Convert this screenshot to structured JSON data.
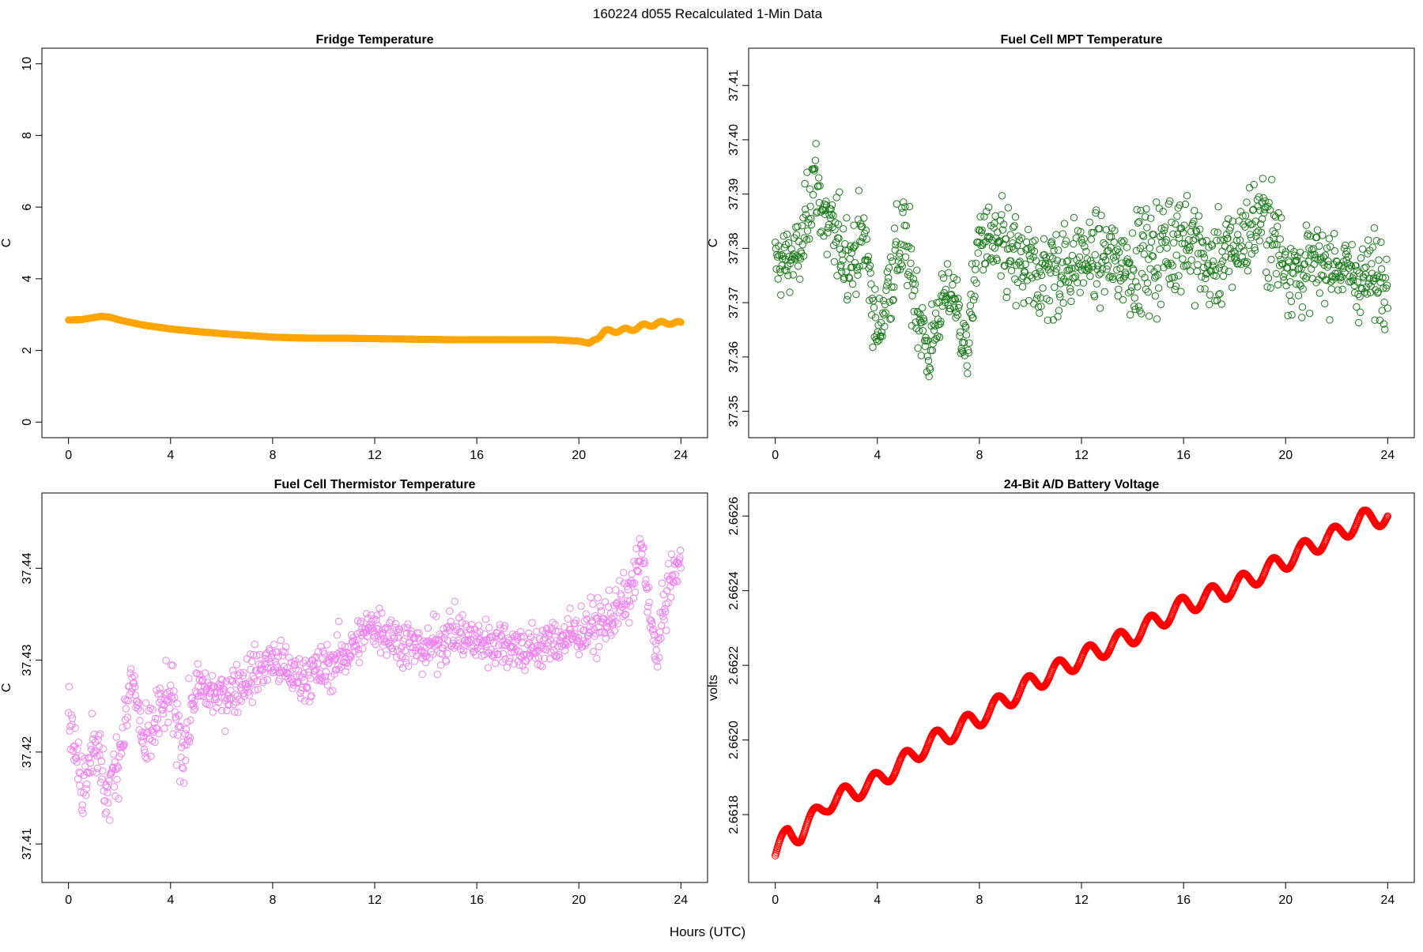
{
  "figure": {
    "title": "160224   d055   Recalculated 1-Min Data",
    "xlabel": "Hours (UTC)"
  },
  "chart_data": [
    {
      "id": "fridge",
      "type": "scatter",
      "title": "Fridge Temperature",
      "xlabel": "",
      "ylabel": "C",
      "color": "#FFA500",
      "xlim": [
        0,
        24
      ],
      "ylim": [
        0,
        10
      ],
      "xticks": [
        0,
        4,
        8,
        12,
        16,
        20,
        24
      ],
      "xtick_labels": [
        "0",
        "4",
        "8",
        "12",
        "16",
        "20",
        "24"
      ],
      "yticks": [
        0,
        2,
        4,
        6,
        8,
        10
      ],
      "ytick_labels": [
        "0",
        "2",
        "4",
        "6",
        "8",
        "10"
      ],
      "series": [
        {
          "name": "Fridge Temperature",
          "x": [
            0,
            0.5,
            1.0,
            1.3,
            1.6,
            2.0,
            2.5,
            3,
            4,
            5,
            6,
            7,
            8,
            9,
            10,
            11,
            12,
            13,
            14,
            15,
            16,
            17,
            18,
            19,
            20,
            20.4,
            20.6,
            21.0,
            21.4,
            22.0,
            22.6,
            23.2,
            23.6,
            24.0
          ],
          "y": [
            2.85,
            2.86,
            2.92,
            2.95,
            2.93,
            2.85,
            2.77,
            2.7,
            2.6,
            2.53,
            2.47,
            2.42,
            2.37,
            2.35,
            2.34,
            2.34,
            2.33,
            2.32,
            2.31,
            2.3,
            2.3,
            2.3,
            2.3,
            2.3,
            2.26,
            2.2,
            2.3,
            2.52,
            2.55,
            2.58,
            2.7,
            2.76,
            2.78,
            2.75
          ]
        }
      ]
    },
    {
      "id": "mpt",
      "type": "scatter",
      "title": "Fuel Cell MPT Temperature",
      "xlabel": "",
      "ylabel": "C",
      "color": "#1A7A1A",
      "xlim": [
        0,
        24
      ],
      "ylim": [
        37.348,
        37.414
      ],
      "xticks": [
        0,
        4,
        8,
        12,
        16,
        20,
        24
      ],
      "xtick_labels": [
        "0",
        "4",
        "8",
        "12",
        "16",
        "20",
        "24"
      ],
      "yticks": [
        37.35,
        37.36,
        37.37,
        37.38,
        37.39,
        37.4,
        37.41
      ],
      "ytick_labels": [
        "37.35",
        "37.36",
        "37.37",
        "37.38",
        "37.39",
        "37.40",
        "37.41"
      ],
      "series": [
        {
          "name": "Fuel Cell MPT Temperature",
          "x": [
            0,
            1,
            1.5,
            2,
            3,
            3.5,
            4,
            4.5,
            5,
            5.5,
            6,
            6.5,
            7,
            7.5,
            8,
            9,
            10,
            11,
            12,
            13,
            14,
            15,
            16,
            17,
            18,
            19,
            20,
            20.5,
            21,
            22,
            23,
            24
          ],
          "y": [
            37.377,
            37.379,
            37.394,
            37.384,
            37.378,
            37.382,
            37.363,
            37.375,
            37.382,
            37.371,
            37.36,
            37.37,
            37.372,
            37.36,
            37.382,
            37.379,
            37.375,
            37.376,
            37.378,
            37.378,
            37.377,
            37.379,
            37.383,
            37.376,
            37.38,
            37.386,
            37.378,
            37.375,
            37.377,
            37.377,
            37.374,
            37.376
          ],
          "spread": [
            0.007,
            0.007,
            0.009,
            0.009,
            0.008,
            0.009,
            0.006,
            0.01,
            0.011,
            0.008,
            0.008,
            0.006,
            0.006,
            0.007,
            0.007,
            0.01,
            0.01,
            0.011,
            0.008,
            0.008,
            0.01,
            0.012,
            0.011,
            0.009,
            0.009,
            0.01,
            0.01,
            0.009,
            0.008,
            0.007,
            0.008,
            0.009
          ]
        }
      ]
    },
    {
      "id": "thermistor",
      "type": "scatter",
      "title": "Fuel Cell Thermistor Temperature",
      "xlabel": "",
      "ylabel": "C",
      "color": "#EE82EE",
      "xlim": [
        0,
        24
      ],
      "ylim": [
        37.4075,
        37.4465
      ],
      "xticks": [
        0,
        4,
        8,
        12,
        16,
        20,
        24
      ],
      "xtick_labels": [
        "0",
        "4",
        "8",
        "12",
        "16",
        "20",
        "24"
      ],
      "yticks": [
        37.41,
        37.42,
        37.43,
        37.44
      ],
      "ytick_labels": [
        "37.41",
        "37.42",
        "37.43",
        "37.44"
      ],
      "series": [
        {
          "name": "Fuel Cell Thermistor Temperature",
          "x": [
            0,
            0.5,
            1,
            1.5,
            2,
            2.5,
            3,
            3.5,
            4,
            4.5,
            5,
            6,
            7,
            8,
            9,
            10,
            11,
            12,
            13,
            14,
            15,
            16,
            17,
            18,
            19,
            20,
            21,
            22,
            22.5,
            23,
            23.5,
            24
          ],
          "y": [
            37.425,
            37.416,
            37.422,
            37.415,
            37.42,
            37.428,
            37.42,
            37.424,
            37.426,
            37.42,
            37.427,
            37.426,
            37.428,
            37.43,
            37.428,
            37.429,
            37.431,
            37.434,
            37.432,
            37.431,
            37.433,
            37.432,
            37.432,
            37.431,
            37.432,
            37.433,
            37.434,
            37.437,
            37.442,
            37.43,
            37.438,
            37.441
          ],
          "spread": [
            0.003,
            0.004,
            0.004,
            0.004,
            0.004,
            0.004,
            0.004,
            0.004,
            0.004,
            0.004,
            0.003,
            0.003,
            0.003,
            0.003,
            0.003,
            0.003,
            0.003,
            0.003,
            0.003,
            0.003,
            0.003,
            0.003,
            0.003,
            0.003,
            0.003,
            0.003,
            0.003,
            0.003,
            0.003,
            0.003,
            0.003,
            0.003
          ]
        }
      ]
    },
    {
      "id": "battery",
      "type": "scatter",
      "title": "24-Bit A/D Battery Voltage",
      "xlabel": "",
      "ylabel": "volts",
      "color": "#FF0000",
      "xlim": [
        0,
        24
      ],
      "ylim": [
        2.66166,
        2.66262
      ],
      "xticks": [
        0,
        4,
        8,
        12,
        16,
        20,
        24
      ],
      "xtick_labels": [
        "0",
        "4",
        "8",
        "12",
        "16",
        "20",
        "24"
      ],
      "yticks": [
        2.6618,
        2.662,
        2.6622,
        2.6624,
        2.6626
      ],
      "ytick_labels": [
        "2.6618",
        "2.6620",
        "2.6622",
        "2.6624",
        "2.6626"
      ],
      "series": [
        {
          "name": "24-Bit A/D Battery Voltage",
          "x": [
            0,
            0.5,
            1,
            2,
            4,
            6,
            8,
            10,
            12,
            14,
            16,
            18,
            20,
            21,
            22,
            23,
            24
          ],
          "y": [
            2.66169,
            2.66175,
            2.66175,
            2.66183,
            2.66189,
            2.66199,
            2.66206,
            2.66215,
            2.66222,
            2.66228,
            2.66236,
            2.66241,
            2.66248,
            2.66252,
            2.66255,
            2.66259,
            2.6626
          ]
        }
      ]
    }
  ]
}
